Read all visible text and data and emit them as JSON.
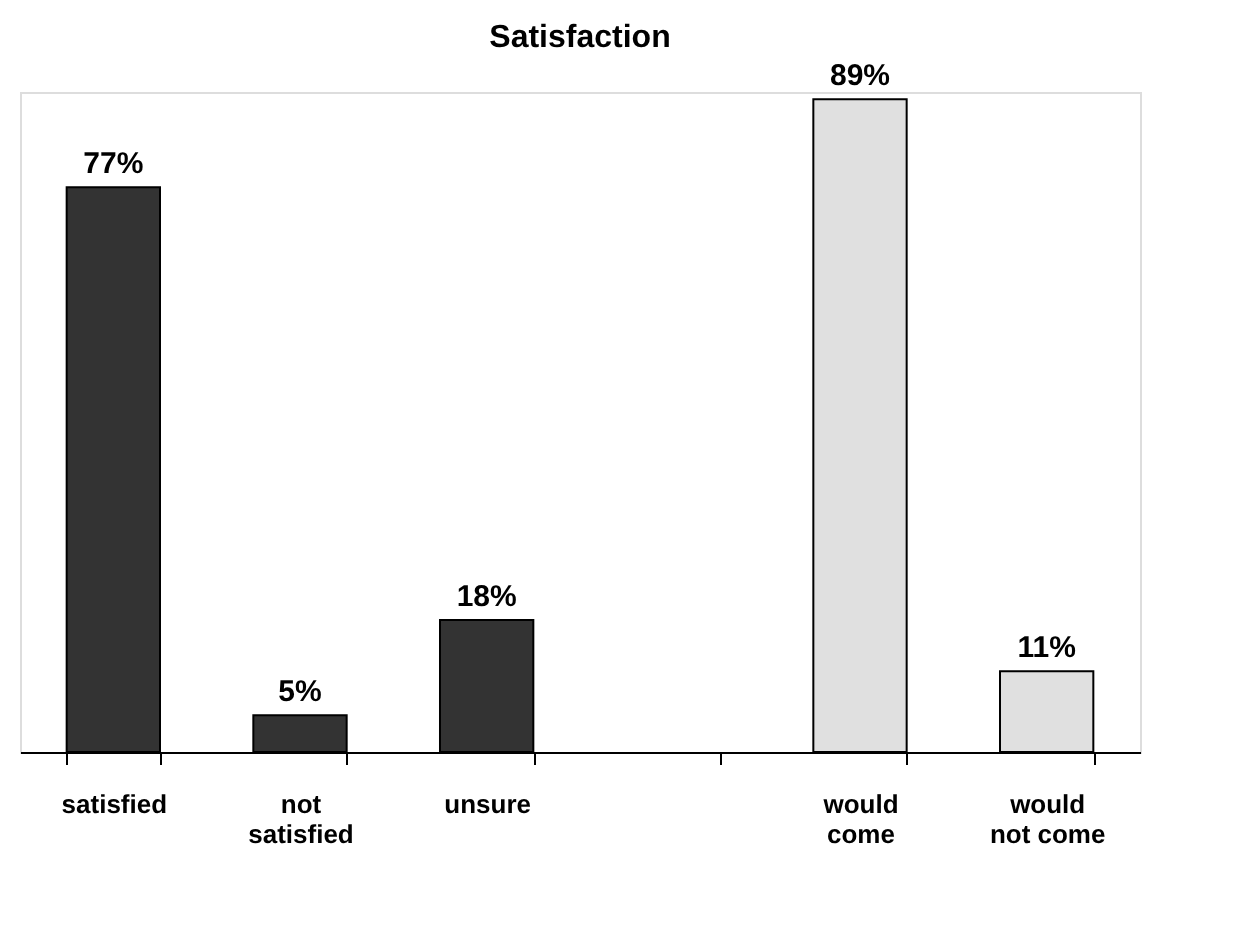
{
  "chart_data": {
    "type": "bar",
    "title": "Satisfaction",
    "categories": [
      "satisfied",
      "not satisfied",
      "unsure",
      null,
      "would come",
      "would not come"
    ],
    "values": [
      77,
      5,
      18,
      null,
      89,
      11
    ],
    "colors": [
      "#333333",
      "#333333",
      "#333333",
      "#333333",
      "#e0e0e0",
      "#e0e0e0"
    ],
    "value_labels": [
      "77%",
      "5%",
      "18%",
      null,
      "89%",
      "11%"
    ]
  }
}
